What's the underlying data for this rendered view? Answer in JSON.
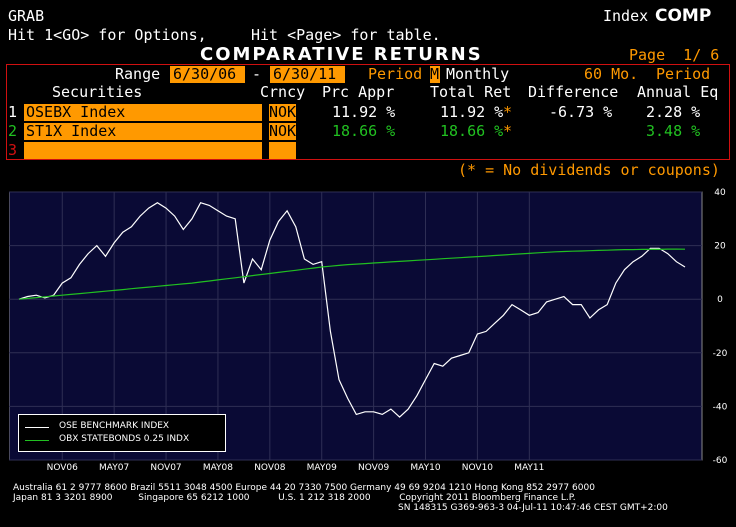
{
  "header": {
    "screen_name": "GRAB",
    "hint_options": "Hit 1<GO> for Options,",
    "hint_table": "Hit <Page> for table.",
    "title": "COMPARATIVE RETURNS",
    "index_label": "Index",
    "index_value": "COMP",
    "page_label": "Page  1/ 6"
  },
  "range": {
    "label": "Range",
    "start": "6/30/06",
    "dash": "-",
    "end": "6/30/11",
    "period_label": "Period",
    "period_code": "M",
    "period_value": "Monthly",
    "months_label": "60 Mo.",
    "period2_label": "Period"
  },
  "table": {
    "headers": {
      "securities": "Securities",
      "currency": "Crncy",
      "price_appr": "Prc Appr",
      "total_ret": "Total Ret",
      "difference": "Difference",
      "annual_eq": "Annual Eq"
    },
    "rows": [
      {
        "num": "1",
        "name": "OSEBX Index",
        "crncy": "NOK",
        "prc": "11.92 %",
        "tot": "11.92 %",
        "star": "*",
        "diff": "-6.73 %",
        "ann": "2.28 %"
      },
      {
        "num": "2",
        "name": "ST1X Index",
        "crncy": "NOK",
        "prc": "18.66 %",
        "tot": "18.66 %",
        "star": "*",
        "diff": "",
        "ann": "3.48 %"
      },
      {
        "num": "3",
        "name": "",
        "crncy": "",
        "prc": "",
        "tot": "",
        "star": "",
        "diff": "",
        "ann": ""
      }
    ],
    "footnote": "(* = No dividends or coupons)"
  },
  "colors": {
    "chart_bg": "#0a0a35",
    "grid": "#2f2f55",
    "series1": "#ffffff",
    "series2": "#21c021",
    "amber": "#ff9900"
  },
  "chart_data": {
    "type": "line",
    "ylim": [
      -60,
      40
    ],
    "yticks": [
      "40",
      "20",
      "0",
      "-20",
      "-40",
      "-60"
    ],
    "ytick_values": [
      40,
      20,
      0,
      -20,
      -40,
      -60
    ],
    "xticks": [
      "NOV06",
      "MAY07",
      "NOV07",
      "MAY08",
      "NOV08",
      "MAY09",
      "NOV09",
      "MAY10",
      "NOV10",
      "MAY11"
    ],
    "xtick_index": [
      5,
      11,
      17,
      23,
      29,
      35,
      41,
      47,
      53,
      59
    ],
    "grid": true,
    "legend_position": "bottom-left",
    "series": [
      {
        "name": "OSE BENCHMARK INDEX",
        "values": [
          0,
          1,
          1.5,
          0.5,
          1.5,
          6,
          8,
          13,
          17,
          20,
          16,
          21,
          25,
          27,
          31,
          34,
          36,
          34,
          31,
          26,
          30,
          36,
          35,
          33,
          31,
          30,
          6,
          15,
          11,
          22,
          29,
          33,
          27,
          15,
          13,
          14,
          -12,
          -30,
          -37,
          -43,
          -42,
          -42,
          -43,
          -41,
          -44,
          -41,
          -36,
          -30,
          -24,
          -25,
          -22,
          -21,
          -20,
          -13,
          -12,
          -9,
          -6,
          -2,
          -4,
          -6,
          -5,
          -1,
          0,
          1,
          -2,
          -2,
          -7,
          -4,
          -2,
          6,
          11,
          14,
          16,
          19,
          19,
          17,
          14,
          12
        ],
        "color": "#ffffff"
      },
      {
        "name": "OBX STATEBONDS 0.25 INDX",
        "values": [
          0,
          0.3,
          0.6,
          0.9,
          1.2,
          1.5,
          1.8,
          2.1,
          2.4,
          2.7,
          3.0,
          3.3,
          3.6,
          3.9,
          4.2,
          4.5,
          4.8,
          5.1,
          5.4,
          5.7,
          6.0,
          6.4,
          6.8,
          7.2,
          7.6,
          8.0,
          8.4,
          8.8,
          9.2,
          9.6,
          10.0,
          10.4,
          10.8,
          11.2,
          11.6,
          12.0,
          12.3,
          12.6,
          12.9,
          13.1,
          13.3,
          13.5,
          13.7,
          13.9,
          14.1,
          14.3,
          14.5,
          14.7,
          14.9,
          15.1,
          15.3,
          15.5,
          15.7,
          15.9,
          16.1,
          16.3,
          16.5,
          16.7,
          16.9,
          17.1,
          17.3,
          17.5,
          17.7,
          17.8,
          17.9,
          18.0,
          18.1,
          18.2,
          18.3,
          18.4,
          18.5,
          18.5,
          18.6,
          18.6,
          18.6,
          18.7,
          18.7,
          18.66
        ],
        "color": "#21c021"
      }
    ]
  },
  "footer": {
    "line1": "Australia 61 2 9777 8600 Brazil 5511 3048 4500 Europe 44 20 7330 7500 Germany 49 69 9204 1210 Hong Kong 852 2977 6000",
    "line2": "Japan 81 3 3201 8900         Singapore 65 6212 1000          U.S. 1 212 318 2000          Copyright 2011 Bloomberg Finance L.P.",
    "line3": "SN 148315 G369-963-3 04-Jul-11 10:47:46 CEST GMT+2:00"
  }
}
